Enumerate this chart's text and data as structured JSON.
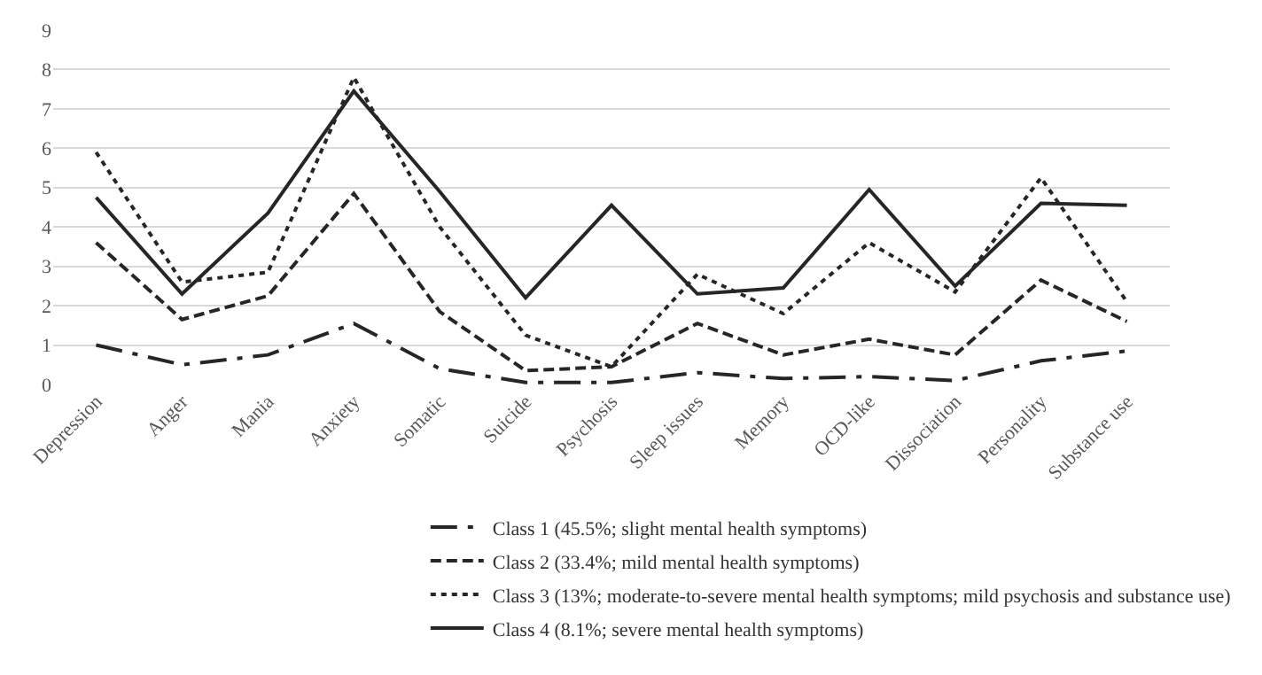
{
  "chart_data": {
    "type": "line",
    "categories": [
      "Depression",
      "Anger",
      "Mania",
      "Anxiety",
      "Somatic",
      "Suicide",
      "Psychosis",
      "Sleep issues",
      "Memory",
      "OCD-like",
      "Dissociation",
      "Personality",
      "Substance use"
    ],
    "series": [
      {
        "name": "Class 1 (45.5%; slight mental health symptoms)",
        "color": "#262626",
        "line_style": "dashdot",
        "values": [
          1.0,
          0.5,
          0.75,
          1.55,
          0.4,
          0.05,
          0.05,
          0.3,
          0.15,
          0.2,
          0.1,
          0.6,
          0.85
        ]
      },
      {
        "name": "Class 2 (33.4%; mild mental health symptoms)",
        "color": "#262626",
        "line_style": "dashed",
        "values": [
          3.6,
          1.65,
          2.25,
          4.85,
          1.85,
          0.35,
          0.45,
          1.55,
          0.75,
          1.15,
          0.75,
          2.65,
          1.6
        ]
      },
      {
        "name": "Class 3 (13%; moderate-to-severe mental health symptoms; mild psychosis and substance use)",
        "color": "#262626",
        "line_style": "dotted",
        "values": [
          5.9,
          2.6,
          2.85,
          7.8,
          4.0,
          1.25,
          0.45,
          2.8,
          1.8,
          3.6,
          2.35,
          5.25,
          2.1
        ]
      },
      {
        "name": "Class 4 (8.1%; severe mental health symptoms)",
        "color": "#262626",
        "line_style": "solid",
        "values": [
          4.75,
          2.3,
          4.35,
          7.45,
          4.9,
          2.2,
          4.55,
          2.3,
          2.45,
          4.95,
          2.5,
          4.6,
          4.55
        ]
      }
    ],
    "ylim": [
      0,
      9
    ],
    "yticks": [
      0,
      1,
      2,
      3,
      4,
      5,
      6,
      7,
      8,
      9
    ],
    "grid": "y",
    "legend": "bottom",
    "marker": "none"
  }
}
